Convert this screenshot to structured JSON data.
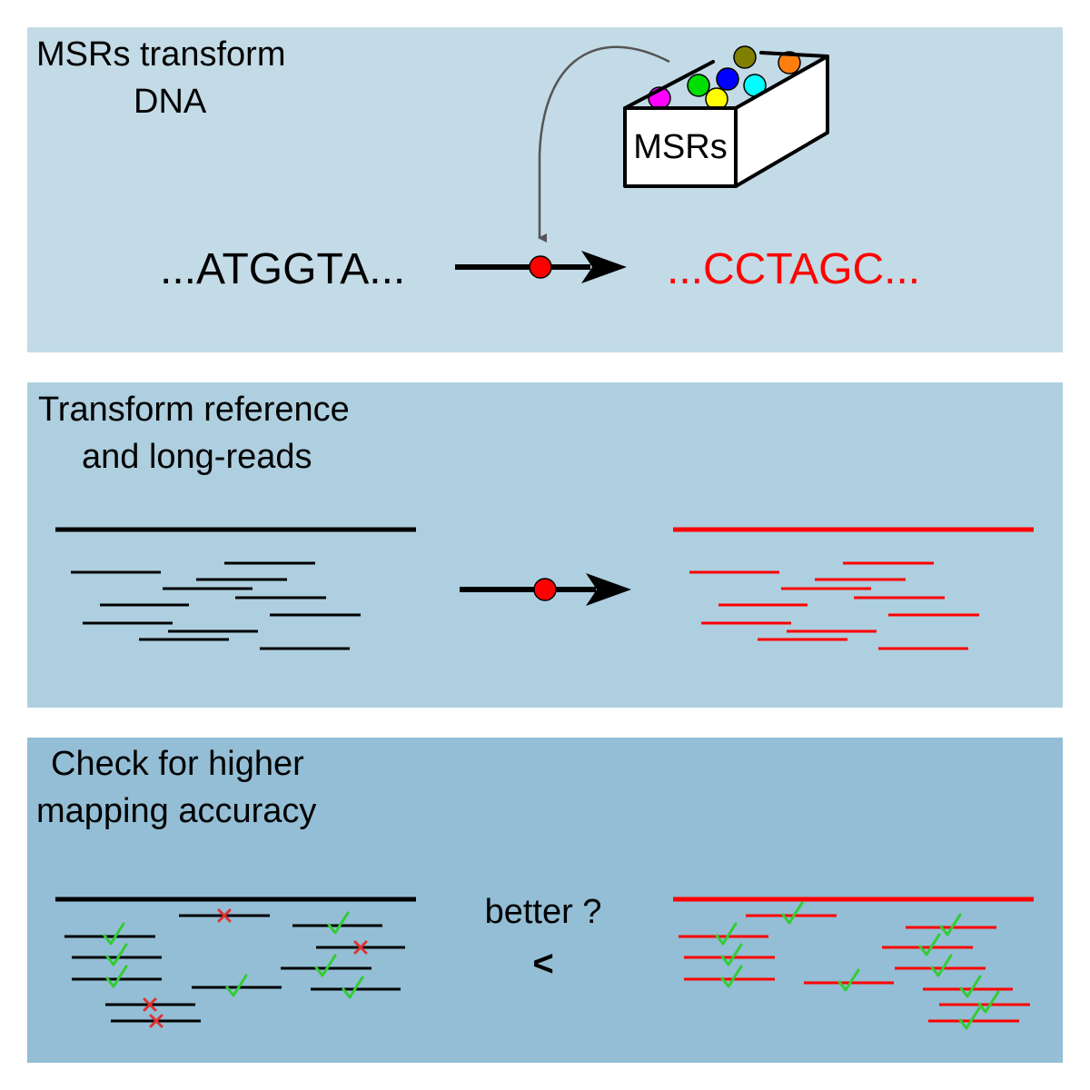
{
  "panel1": {
    "title_line1": "MSRs transform",
    "title_line2": "DNA",
    "box_label": "MSRs",
    "seq_original": "...ATGGTA...",
    "seq_transformed": "...CCTAGC...",
    "ball_colors": [
      "#808000",
      "#ff7f0e",
      "#00dd00",
      "#0000ff",
      "#00ffff",
      "#ff00ff",
      "#ffff00"
    ],
    "arrow_dot_color": "#ff0000"
  },
  "panel2": {
    "title_line1": "Transform reference",
    "title_line2": "and long-reads",
    "original_color": "#000000",
    "transformed_color": "#ff0000"
  },
  "panel3": {
    "title_line1": "Check for higher",
    "title_line2": "mapping accuracy",
    "compare_label": "better ?",
    "compare_symbol": "<",
    "check_color": "#33cc33",
    "cross_color": "#dd3333"
  },
  "colors": {
    "panel1_bg": "#c3dbe6",
    "panel2_bg": "#aecfdf",
    "panel3_bg": "#93bed5"
  }
}
